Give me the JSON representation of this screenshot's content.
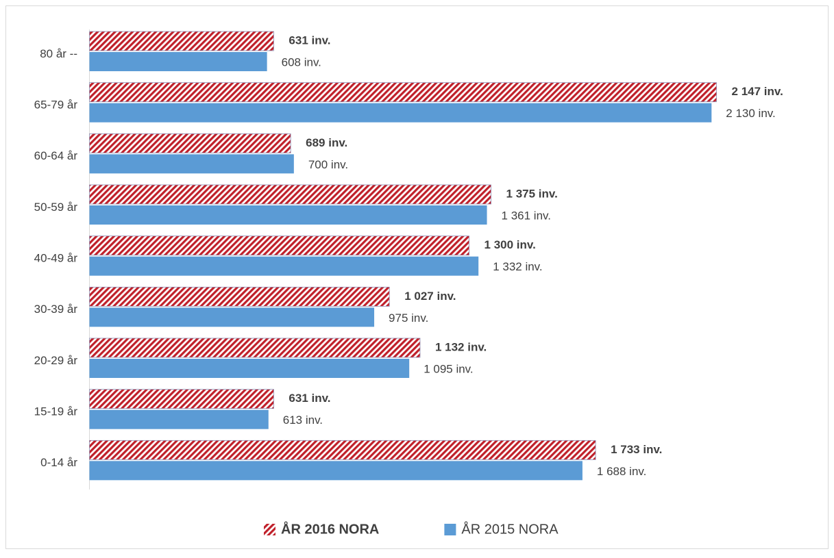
{
  "chart_data": {
    "type": "hbar",
    "categories": [
      "80 år --",
      "65-79 år",
      "60-64 år",
      "50-59 år",
      "40-49 år",
      "30-39 år",
      "20-29 år",
      "15-19 år",
      "0-14 år"
    ],
    "series": [
      {
        "name": "ÅR 2016 NORA",
        "color": "#c0202a",
        "pattern": "hatch",
        "values": [
          631,
          2147,
          689,
          1375,
          1300,
          1027,
          1132,
          631,
          1733
        ],
        "value_labels": [
          "631 inv.",
          "2 147 inv.",
          "689 inv.",
          "1 375 inv.",
          "1 300 inv.",
          "1 027 inv.",
          "1 132 inv.",
          "631 inv.",
          "1 733 inv."
        ]
      },
      {
        "name": "ÅR 2015 NORA",
        "color": "#5b9bd5",
        "values": [
          608,
          2130,
          700,
          1361,
          1332,
          975,
          1095,
          613,
          1688
        ],
        "value_labels": [
          "608 inv.",
          "2 130 inv.",
          "700 inv.",
          "1 361 inv.",
          "1 332 inv.",
          "975 inv.",
          "1 095 inv.",
          "613 inv.",
          "1 688 inv."
        ]
      }
    ],
    "xlim": [
      0,
      2500
    ],
    "legend": "bottom"
  }
}
